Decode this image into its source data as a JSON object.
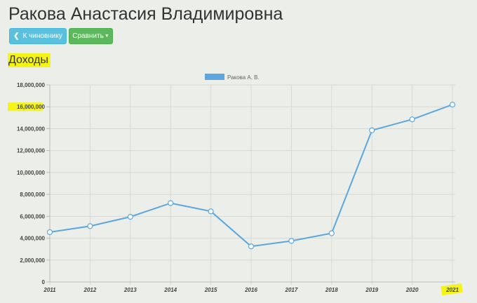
{
  "page": {
    "title": "Ракова Анастасия Владимировна"
  },
  "toolbar": {
    "back_label": "К чиновнику",
    "compare_label": "Сравнить",
    "back_icon": "chevron-left-icon",
    "compare_icon": "caret-down-icon"
  },
  "section": {
    "heading": "Доходы"
  },
  "colors": {
    "series": "#5ba7de",
    "highlight": "#f4f416",
    "info_button": "#5bc0de",
    "success_button": "#5cb85c"
  },
  "chart_data": {
    "type": "line",
    "x": [
      "2011",
      "2012",
      "2013",
      "2014",
      "2015",
      "2016",
      "2017",
      "2018",
      "2019",
      "2020",
      "2021"
    ],
    "series": [
      {
        "name": "Ракова А. В.",
        "values": [
          4550000,
          5100000,
          5950000,
          7200000,
          6450000,
          3250000,
          3750000,
          4450000,
          13850000,
          14850000,
          16200000
        ]
      }
    ],
    "yticks": [
      "0",
      "2,000,000",
      "4,000,000",
      "6,000,000",
      "8,000,000",
      "10,000,000",
      "12,000,000",
      "14,000,000",
      "16,000,000",
      "18,000,000"
    ],
    "ylim": [
      0,
      18000000
    ],
    "grid": true,
    "legend": "top-center",
    "highlighted_ticks": [
      "16,000,000",
      "2021"
    ]
  }
}
